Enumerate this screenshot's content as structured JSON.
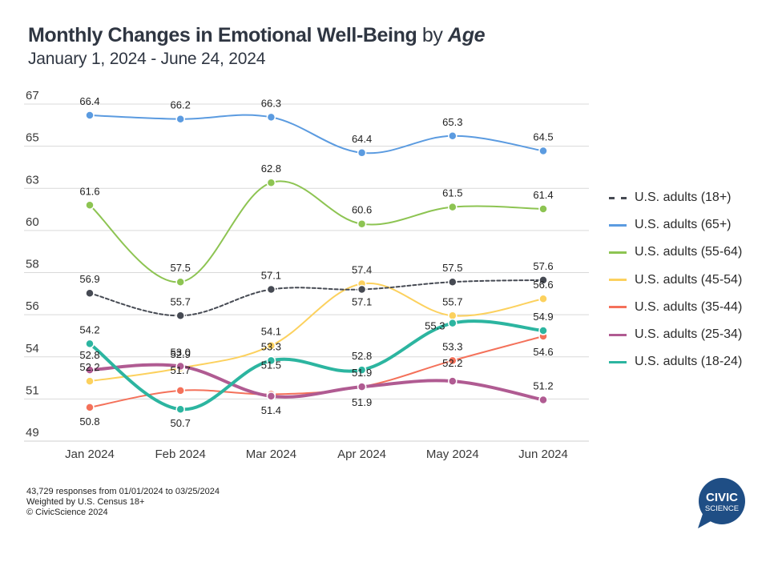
{
  "header": {
    "title_main": "Monthly Changes in Emotional Well-Being",
    "title_by": "by",
    "title_age": "Age",
    "subtitle": "January 1, 2024 - June 24, 2024"
  },
  "footer": {
    "lines": [
      "43,729 responses from 01/01/2024 to 03/25/2024",
      "Weighted by U.S. Census 18+",
      "© CivicScience 2024"
    ]
  },
  "logo": {
    "line1": "CIVIC",
    "line2": "SCIENCE",
    "color": "#1f4e85"
  },
  "chart_data": {
    "type": "line",
    "title": "Monthly Changes in Emotional Well-Being by Age",
    "subtitle": "January 1, 2024 - June 24, 2024",
    "xlabel": "",
    "ylabel": "",
    "categories": [
      "Jan 2024",
      "Feb 2024",
      "Mar 2024",
      "Apr 2024",
      "May 2024",
      "Jun 2024"
    ],
    "ylim": [
      49,
      67
    ],
    "yticks": [
      49,
      51,
      54,
      56,
      58,
      60,
      63,
      65,
      67
    ],
    "grid": true,
    "legend_position": "right",
    "series": [
      {
        "name": "U.S. adults (18+)",
        "color": "#464a53",
        "style": "dashed",
        "values": [
          56.9,
          55.7,
          57.1,
          57.1,
          57.5,
          57.6
        ]
      },
      {
        "name": "U.S. adults (65+)",
        "color": "#5b9be0",
        "style": "solid",
        "values": [
          66.4,
          66.2,
          66.3,
          64.4,
          65.3,
          64.5
        ]
      },
      {
        "name": "U.S. adults (55-64)",
        "color": "#8dc452",
        "style": "solid",
        "values": [
          61.6,
          57.5,
          62.8,
          60.6,
          61.5,
          61.4
        ]
      },
      {
        "name": "U.S. adults (45-54)",
        "color": "#fcd15e",
        "style": "solid",
        "values": [
          52.2,
          52.9,
          54.1,
          57.4,
          55.7,
          56.6
        ]
      },
      {
        "name": "U.S. adults (35-44)",
        "color": "#f4715a",
        "style": "solid",
        "values": [
          50.8,
          51.7,
          51.5,
          51.9,
          53.3,
          54.6
        ]
      },
      {
        "name": "U.S. adults (25-34)",
        "color": "#b05b92",
        "style": "thick",
        "values": [
          52.8,
          53.0,
          51.4,
          51.9,
          52.2,
          51.2
        ]
      },
      {
        "name": "U.S. adults (18-24)",
        "color": "#2cb5a0",
        "style": "thick",
        "values": [
          54.2,
          50.7,
          53.3,
          52.8,
          55.3,
          54.9
        ]
      }
    ]
  }
}
